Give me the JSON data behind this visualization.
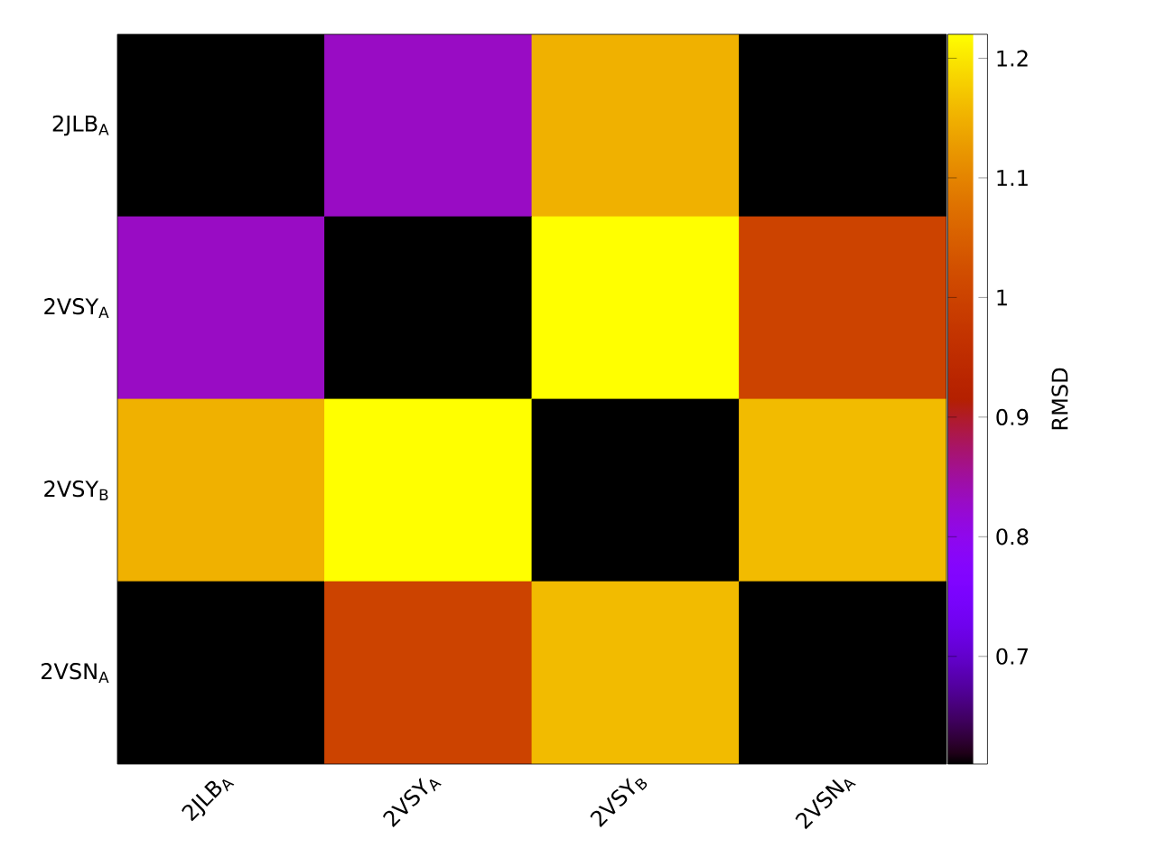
{
  "chart_data": {
    "type": "heatmap",
    "clabel": "RMSD",
    "categories": [
      "2JLB$_{A}$",
      "2VSY$_{A}$",
      "2VSY$_{B}$",
      "2VSN$_{A}$"
    ],
    "y_categories": [
      "2JLB$_{A}$",
      "2VSY$_{A}$",
      "2VSY$_{B}$",
      "2VSN$_{A}$"
    ],
    "cells": [
      [
        0.61,
        0.83,
        1.15,
        0.61
      ],
      [
        0.83,
        0.61,
        1.22,
        1.0
      ],
      [
        1.15,
        1.22,
        0.61,
        1.16
      ],
      [
        0.61,
        1.0,
        1.16,
        0.61
      ]
    ],
    "clim": [
      0.61,
      1.22
    ],
    "cticks": [
      0.7,
      0.8,
      0.9,
      1,
      1.1,
      1.2
    ]
  }
}
